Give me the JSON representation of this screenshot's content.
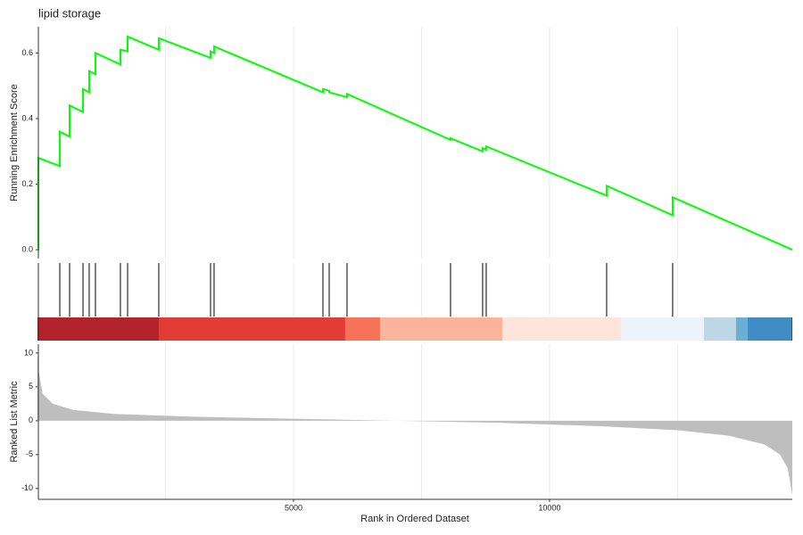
{
  "chart_data": {
    "type": "gsea",
    "title": "lipid storage",
    "xlabel": "Rank in Ordered Dataset",
    "xlim": [
      0,
      14740
    ],
    "xticks": [
      5000,
      10000
    ],
    "xgrid": [
      2500,
      5000,
      7500,
      10000,
      12500
    ],
    "score": {
      "ylabel": "Running Enrichment Score",
      "color": "#00ff00",
      "x": [
        0,
        17,
        17,
        436,
        436,
        627,
        627,
        889,
        889,
        1010,
        1010,
        1132,
        1132,
        1620,
        1620,
        1760,
        1760,
        2369,
        2369,
        3380,
        3380,
        3449,
        3449,
        5575,
        5575,
        5697,
        5697,
        6045,
        6045,
        8066,
        8066,
        8693,
        8693,
        8763,
        8763,
        11115,
        11115,
        12404,
        12404,
        14740
      ],
      "values": [
        0,
        0,
        0.28,
        0.255,
        0.36,
        0.345,
        0.44,
        0.42,
        0.49,
        0.48,
        0.545,
        0.535,
        0.6,
        0.565,
        0.61,
        0.605,
        0.65,
        0.61,
        0.645,
        0.585,
        0.605,
        0.6,
        0.62,
        0.48,
        0.49,
        0.485,
        0.48,
        0.465,
        0.475,
        0.335,
        0.34,
        0.3,
        0.31,
        0.305,
        0.315,
        0.165,
        0.195,
        0.105,
        0.16,
        0
      ],
      "ylim": [
        -0.027,
        0.68
      ],
      "yticks": [
        {
          "value": 0,
          "label": "0.0"
        },
        0.2,
        0.4,
        0.6
      ]
    },
    "hits": [
      17,
      436,
      627,
      889,
      1010,
      1132,
      1620,
      1760,
      2369,
      3380,
      3449,
      5575,
      5697,
      6045,
      8066,
      8693,
      8763,
      11115,
      12404
    ],
    "bands": {
      "x": [
        0,
        2369,
        6010,
        6690,
        9077,
        11394,
        13014,
        13641,
        13868,
        14721,
        14740
      ],
      "colors": [
        "#b2222a",
        "#e23c35",
        "#f6735a",
        "#fcb39b",
        "#fde5dc",
        "#eef3fb",
        "#bdd7e7",
        "#6baed6",
        "#3f8dc4",
        "#08519c"
      ]
    },
    "metric": {
      "ylabel": "Ranked List Metric",
      "color": "#bebebe",
      "x": [
        0,
        30,
        100,
        300,
        700,
        1500,
        3000,
        5000,
        7000,
        9000,
        11000,
        12500,
        13500,
        14200,
        14500,
        14650,
        14740
      ],
      "values": [
        10,
        7,
        4,
        2.5,
        1.6,
        1.0,
        0.6,
        0.3,
        0,
        -0.3,
        -0.8,
        -1.4,
        -2.2,
        -3.5,
        -5,
        -7,
        -11
      ],
      "ylim": [
        -11.6,
        11.3
      ],
      "yticks": [
        10,
        5,
        0,
        -5,
        -10
      ]
    }
  }
}
